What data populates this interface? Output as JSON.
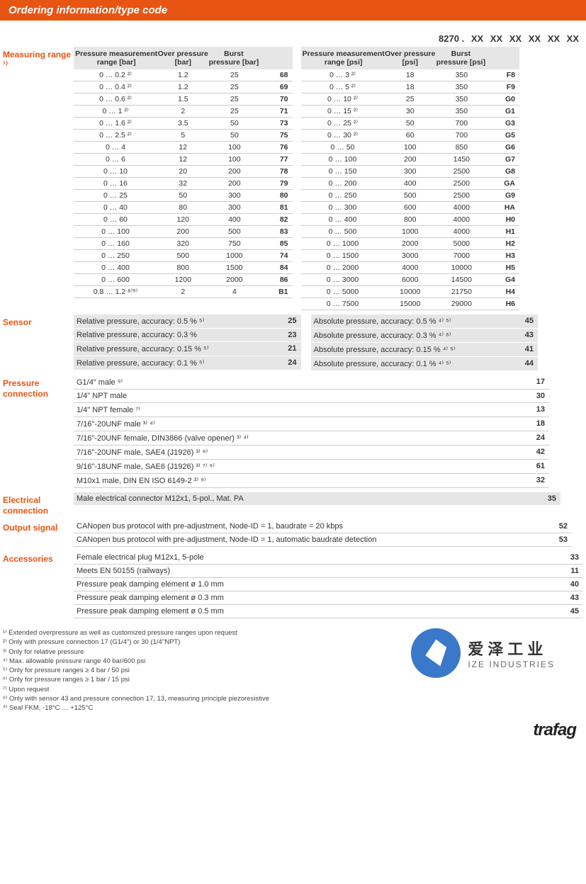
{
  "header": "Ordering information/type code",
  "type_code": {
    "prefix": "8270 .",
    "slots": [
      "XX",
      "XX",
      "XX",
      "XX",
      "XX",
      "XX"
    ]
  },
  "section_labels": {
    "range": "Measuring range ¹⁾",
    "sensor": "Sensor",
    "pressure_conn": "Pressure connection",
    "elec_conn": "Electrical connection",
    "output": "Output signal",
    "accessories": "Accessories"
  },
  "range": {
    "head_bar": {
      "c1": "Pressure measurement range [bar]",
      "c2": "Over pressure [bar]",
      "c3": "Burst pressure [bar]",
      "c4": ""
    },
    "head_psi": {
      "c1": "Pressure measurement range [psi]",
      "c2": "Over pressure [psi]",
      "c3": "Burst pressure [psi]",
      "c4": ""
    },
    "bar_rows": [
      {
        "r": "0 … 0.2 ²⁾",
        "o": "1.2",
        "b": "25",
        "c": "68"
      },
      {
        "r": "0 … 0.4 ²⁾",
        "o": "1.2",
        "b": "25",
        "c": "69"
      },
      {
        "r": "0 … 0.6 ²⁾",
        "o": "1.5",
        "b": "25",
        "c": "70"
      },
      {
        "r": "0 … 1 ²⁾",
        "o": "2",
        "b": "25",
        "c": "71"
      },
      {
        "r": "0 … 1.6 ²⁾",
        "o": "3.5",
        "b": "50",
        "c": "73"
      },
      {
        "r": "0 … 2.5 ²⁾",
        "o": "5",
        "b": "50",
        "c": "75"
      },
      {
        "r": "0 … 4",
        "o": "12",
        "b": "100",
        "c": "76"
      },
      {
        "r": "0 … 6",
        "o": "12",
        "b": "100",
        "c": "77"
      },
      {
        "r": "0 … 10",
        "o": "20",
        "b": "200",
        "c": "78"
      },
      {
        "r": "0 … 16",
        "o": "32",
        "b": "200",
        "c": "79"
      },
      {
        "r": "0 … 25",
        "o": "50",
        "b": "300",
        "c": "80"
      },
      {
        "r": "0 … 40",
        "o": "80",
        "b": "300",
        "c": "81"
      },
      {
        "r": "0 … 60",
        "o": "120",
        "b": "400",
        "c": "82"
      },
      {
        "r": "0 … 100",
        "o": "200",
        "b": "500",
        "c": "83"
      },
      {
        "r": "0 … 160",
        "o": "320",
        "b": "750",
        "c": "85"
      },
      {
        "r": "0 … 250",
        "o": "500",
        "b": "1000",
        "c": "74"
      },
      {
        "r": "0 … 400",
        "o": "800",
        "b": "1500",
        "c": "84"
      },
      {
        "r": "0 … 600",
        "o": "1200",
        "b": "2000",
        "c": "86"
      },
      {
        "r": "0.8 … 1.2 ⁸⁾⁹⁾",
        "o": "2",
        "b": "4",
        "c": "B1"
      }
    ],
    "psi_rows": [
      {
        "r": "0 … 3 ²⁾",
        "o": "18",
        "b": "350",
        "c": "F8"
      },
      {
        "r": "0 … 5 ²⁾",
        "o": "18",
        "b": "350",
        "c": "F9"
      },
      {
        "r": "0 … 10 ²⁾",
        "o": "25",
        "b": "350",
        "c": "G0"
      },
      {
        "r": "0 … 15 ²⁾",
        "o": "30",
        "b": "350",
        "c": "G1"
      },
      {
        "r": "0 … 25 ²⁾",
        "o": "50",
        "b": "700",
        "c": "G3"
      },
      {
        "r": "0 … 30 ²⁾",
        "o": "60",
        "b": "700",
        "c": "G5"
      },
      {
        "r": "0 … 50",
        "o": "100",
        "b": "850",
        "c": "G6"
      },
      {
        "r": "0 … 100",
        "o": "200",
        "b": "1450",
        "c": "G7"
      },
      {
        "r": "0 … 150",
        "o": "300",
        "b": "2500",
        "c": "G8"
      },
      {
        "r": "0 … 200",
        "o": "400",
        "b": "2500",
        "c": "GA"
      },
      {
        "r": "0 … 250",
        "o": "500",
        "b": "2500",
        "c": "G9"
      },
      {
        "r": "0 … 300",
        "o": "600",
        "b": "4000",
        "c": "HA"
      },
      {
        "r": "0 … 400",
        "o": "800",
        "b": "4000",
        "c": "H0"
      },
      {
        "r": "0 … 500",
        "o": "1000",
        "b": "4000",
        "c": "H1"
      },
      {
        "r": "0 … 1000",
        "o": "2000",
        "b": "5000",
        "c": "H2"
      },
      {
        "r": "0 … 1500",
        "o": "3000",
        "b": "7000",
        "c": "H3"
      },
      {
        "r": "0 … 2000",
        "o": "4000",
        "b": "10000",
        "c": "H5"
      },
      {
        "r": "0 … 3000",
        "o": "6000",
        "b": "14500",
        "c": "G4"
      },
      {
        "r": "0 … 5000",
        "o": "10000",
        "b": "21750",
        "c": "H4"
      },
      {
        "r": "0 … 7500",
        "o": "15000",
        "b": "29000",
        "c": "H6"
      }
    ]
  },
  "sensor": {
    "left": [
      {
        "t": "Relative pressure, accuracy: 0.5 % ⁵⁾",
        "c": "25"
      },
      {
        "t": "Relative pressure, accuracy: 0.3 %",
        "c": "23"
      },
      {
        "t": "Relative pressure, accuracy: 0.15 % ⁵⁾",
        "c": "21"
      },
      {
        "t": "Relative pressure, accuracy: 0.1 % ⁵⁾",
        "c": "24"
      }
    ],
    "right": [
      {
        "t": "Absolute pressure, accuracy: 0.5 % ⁴⁾ ⁵⁾",
        "c": "45"
      },
      {
        "t": "Absolute pressure, accuracy: 0.3 % ⁴⁾ ⁶⁾",
        "c": "43"
      },
      {
        "t": "Absolute pressure, accuracy: 0.15 % ⁴⁾ ⁵⁾",
        "c": "41"
      },
      {
        "t": "Absolute pressure, accuracy: 0.1 % ⁴⁾ ⁵⁾",
        "c": "44"
      }
    ]
  },
  "pressure_conn": [
    {
      "t": "G1/4\" male ⁹⁾",
      "c": "17"
    },
    {
      "t": "1/4\" NPT male",
      "c": "30"
    },
    {
      "t": "1/4\" NPT female ⁷⁾",
      "c": "13"
    },
    {
      "t": "7/16\"-20UNF male ³⁾ ⁴⁾",
      "c": "18"
    },
    {
      "t": "7/16\"-20UNF female, DIN3866 (valve opener) ³⁾ ⁴⁾",
      "c": "24"
    },
    {
      "t": "7/16\"-20UNF male, SAE4 (J1926) ³⁾ ⁹⁾",
      "c": "42"
    },
    {
      "t": "9/16\"-18UNF male, SAE6 (J1926) ³⁾ ⁷⁾ ⁹⁾",
      "c": "61"
    },
    {
      "t": "M10x1 male, DIN EN ISO 6149-2 ³⁾ ⁹⁾",
      "c": "32"
    }
  ],
  "elec_conn": [
    {
      "t": "Male electrical connector M12x1, 5-pol., Mat. PA",
      "c": "35"
    }
  ],
  "output": [
    {
      "t": "CANopen bus protocol with pre-adjustment, Node-ID = 1, baudrate = 20 kbps",
      "c": "52"
    },
    {
      "t": "CANopen bus protocol with pre-adjustment, Node-ID = 1, automatic baudrate detection",
      "c": "53"
    }
  ],
  "accessories": [
    {
      "t": "Female electrical plug M12x1, 5-pole",
      "c": "33"
    },
    {
      "t": "Meets EN 50155 (railways)",
      "c": "11"
    },
    {
      "t": "Pressure peak damping element ø 1.0 mm",
      "c": "40"
    },
    {
      "t": "Pressure peak damping element ø 0.3 mm",
      "c": "43"
    },
    {
      "t": "Pressure peak damping element ø 0.5 mm",
      "c": "45"
    }
  ],
  "footnotes": [
    "¹⁾ Extended overpressure as well as customized pressure ranges upon request",
    "²⁾ Only with pressure connection 17 (G1/4\") or 30 (1/4\"NPT)",
    "³⁾ Only for relative pressure",
    "⁴⁾ Max. allowable pressure range 40 bar/600 psi",
    "⁵⁾ Only for pressure ranges ≥ 4 bar / 50 psi",
    "⁶⁾ Only for pressure ranges ≥ 1 bar / 15 psi",
    "⁷⁾ Upon request",
    "⁸⁾ Only with sensor 43 and pressure connection 17, 13, measuring principle piezoresistive",
    "⁹⁾ Seal FKM, -18°C … +125°C"
  ],
  "brand": {
    "cn": "爱泽工业",
    "en": "IZE INDUSTRIES"
  },
  "bottom_logo": "trafag",
  "colors": {
    "accent": "#e85412",
    "grey": "#e6e6e6"
  }
}
